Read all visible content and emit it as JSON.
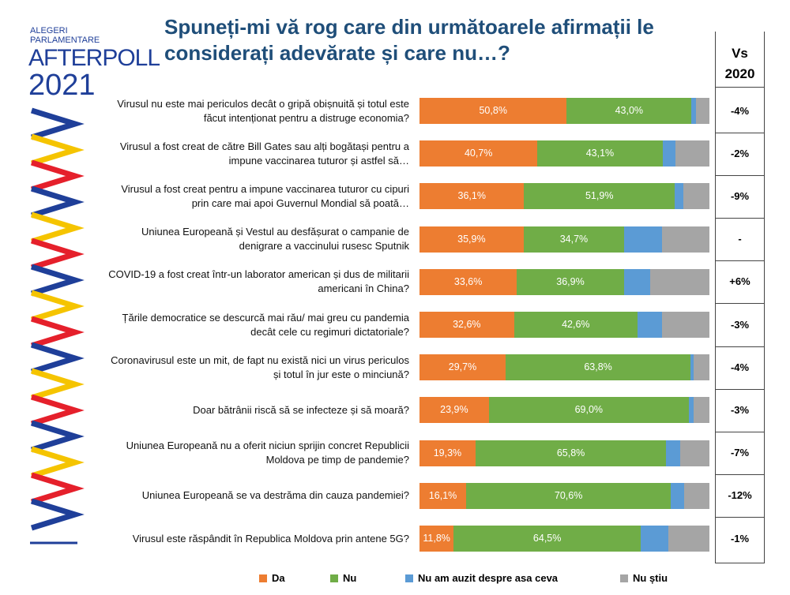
{
  "logo": {
    "line1": "ALEGERI",
    "line2": "PARLAMENTARE",
    "brand": "AFTERPOLL",
    "year": "2021"
  },
  "chart_data": {
    "type": "bar",
    "orientation": "horizontal",
    "stacked": true,
    "title": "Spuneți-mi vă rog care din următoarele afirmații le considerați adevărate și care nu…?",
    "legend": "bottom",
    "categories": [
      "Virusul nu este mai periculos decât o gripă obișnuită și totul este făcut intenționat pentru a distruge economia?",
      "Virusul a fost creat de către Bill Gates sau alți bogătași pentru a impune vaccinarea tuturor și astfel să…",
      "Virusul a fost creat pentru a impune vaccinarea tuturor cu cipuri prin care mai apoi Guvernul Mondial să poată…",
      "Uniunea Europeană și Vestul au desfășurat o campanie de denigrare a vaccinului rusesc Sputnik",
      "COVID-19 a fost creat într-un laborator american și dus de militarii americani în China?",
      "Țările democratice se descurcă mai rău/ mai greu cu pandemia decât cele cu regimuri dictatoriale?",
      "Coronavirusul este un mit, de fapt nu există nici un virus periculos și totul în jur este o minciună?",
      "Doar bătrânii riscă să se infecteze și să moară?",
      "Uniunea Europeană nu a oferit niciun sprijin concret Republicii Moldova pe timp de pandemie?",
      "Uniunea Europeană se va destrăma din cauza pandemiei?",
      "Virusul este răspândit în Republica Moldova prin antene 5G?"
    ],
    "series": [
      {
        "name": "Da",
        "color": "#ed7d31",
        "values": [
          50.8,
          40.7,
          36.1,
          35.9,
          33.6,
          32.6,
          29.7,
          23.9,
          19.3,
          16.1,
          11.8
        ],
        "value_labels": [
          "50,8%",
          "40,7%",
          "36,1%",
          "35,9%",
          "33,6%",
          "32,6%",
          "29,7%",
          "23,9%",
          "19,3%",
          "16,1%",
          "11,8%"
        ]
      },
      {
        "name": "Nu",
        "color": "#70ad47",
        "values": [
          43.0,
          43.1,
          51.9,
          34.7,
          36.9,
          42.6,
          63.8,
          69.0,
          65.8,
          70.6,
          64.5
        ],
        "value_labels": [
          "43,0%",
          "43,1%",
          "51,9%",
          "34,7%",
          "36,9%",
          "42,6%",
          "63,8%",
          "69,0%",
          "65,8%",
          "70,6%",
          "64,5%"
        ]
      },
      {
        "name": "Nu am auzit despre asa ceva",
        "color": "#5b9bd5",
        "values": [
          1.6,
          4.6,
          3.0,
          13.1,
          9.0,
          8.4,
          1.0,
          1.6,
          4.9,
          4.6,
          9.5
        ]
      },
      {
        "name": "Nu știu",
        "color": "#a5a5a5",
        "values": [
          4.6,
          11.6,
          9.0,
          16.3,
          20.5,
          16.4,
          5.5,
          5.5,
          10.0,
          8.7,
          14.2
        ]
      }
    ],
    "comparison": {
      "header": [
        "Vs",
        "2020"
      ],
      "values": [
        "-4%",
        "-2%",
        "-9%",
        "-",
        "+6%",
        "-3%",
        "-4%",
        "-3%",
        "-7%",
        "-12%",
        "-1%"
      ]
    }
  }
}
